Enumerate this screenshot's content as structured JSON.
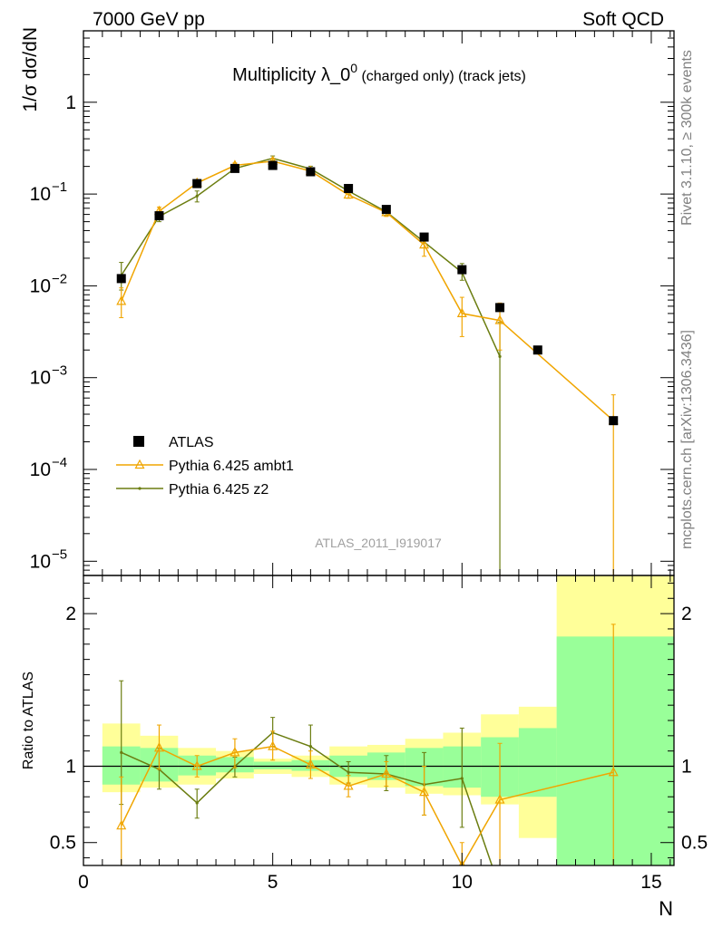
{
  "header": {
    "left": "7000 GeV pp",
    "right": "Soft QCD"
  },
  "side_labels": {
    "rivet": "Rivet 3.1.10, ≥ 300k events",
    "mcplots": "mcplots.cern.ch [arXiv:1306.3436]"
  },
  "watermark": "ATLAS_2011_I919017",
  "chart_data": {
    "type": "line",
    "title": "Multiplicity λ_0⁰ (charged only) (track jets)",
    "title_main": "Multiplicity λ_0",
    "title_sup": "0",
    "title_sub": " (charged only) (track jets)",
    "xlabel": "N",
    "ylabel": "1/σ dσ/dN",
    "ratio_ylabel": "Ratio to ATLAS",
    "xlim": [
      0,
      15.6
    ],
    "ylim_log": [
      7e-06,
      6
    ],
    "ratio_ylim": [
      0.35,
      2.25
    ],
    "x_ticks": [
      0,
      5,
      10,
      15
    ],
    "x_tick_labels": [
      "0",
      "5",
      "10",
      "15"
    ],
    "y_ticks": [
      1,
      0.1,
      0.01,
      0.001,
      0.0001,
      1e-05
    ],
    "y_tick_labels": [
      {
        "base": "1",
        "exp": ""
      },
      {
        "base": "10",
        "exp": "−1"
      },
      {
        "base": "10",
        "exp": "−2"
      },
      {
        "base": "10",
        "exp": "−3"
      },
      {
        "base": "10",
        "exp": "−4"
      },
      {
        "base": "10",
        "exp": "−5"
      }
    ],
    "ratio_ticks": [
      0.5,
      1,
      2
    ],
    "ratio_tick_labels": [
      "0.5",
      "1",
      "2"
    ],
    "legend": [
      {
        "label": "ATLAS",
        "color": "#000000",
        "marker": "square"
      },
      {
        "label": "Pythia 6.425 ambt1",
        "color": "#f0a500",
        "marker": "triangle"
      },
      {
        "label": "Pythia 6.425 z2",
        "color": "#6b7d10",
        "marker": "dot"
      }
    ],
    "atlas": {
      "x": [
        1,
        2,
        3,
        4,
        5,
        6,
        7,
        8,
        9,
        10,
        11,
        12,
        14
      ],
      "y": [
        0.012,
        0.058,
        0.13,
        0.19,
        0.205,
        0.175,
        0.115,
        0.068,
        0.034,
        0.015,
        0.0058,
        0.002,
        0.00034
      ],
      "band_edges": [
        0.5,
        1.5,
        2.5,
        3.5,
        4.5,
        5.5,
        6.5,
        7.5,
        8.5,
        9.5,
        10.5,
        11.5,
        12.5,
        15.6
      ],
      "stat_band": [
        [
          0.88,
          1.13
        ],
        [
          0.9,
          1.12
        ],
        [
          0.94,
          1.07
        ],
        [
          0.96,
          1.06
        ],
        [
          0.98,
          1.03
        ],
        [
          0.97,
          1.04
        ],
        [
          0.93,
          1.07
        ],
        [
          0.91,
          1.09
        ],
        [
          0.87,
          1.12
        ],
        [
          0.86,
          1.13
        ],
        [
          0.8,
          1.19
        ],
        [
          0.8,
          1.25
        ],
        [
          0.3,
          1.85
        ]
      ],
      "total_band": [
        [
          0.83,
          1.28
        ],
        [
          0.86,
          1.2
        ],
        [
          0.88,
          1.12
        ],
        [
          0.92,
          1.1
        ],
        [
          0.95,
          1.05
        ],
        [
          0.93,
          1.07
        ],
        [
          0.88,
          1.13
        ],
        [
          0.86,
          1.14
        ],
        [
          0.82,
          1.18
        ],
        [
          0.81,
          1.22
        ],
        [
          0.75,
          1.34
        ],
        [
          0.53,
          1.39
        ],
        [
          0.3,
          2.4
        ]
      ]
    },
    "ambt1": {
      "x": [
        1,
        2,
        3,
        4,
        5,
        6,
        7,
        8,
        9,
        10,
        11,
        14
      ],
      "y": [
        0.0068,
        0.065,
        0.132,
        0.205,
        0.228,
        0.178,
        0.098,
        0.063,
        0.028,
        0.005,
        0.0042,
        0.00034
      ],
      "err": [
        [
          0.0045,
          0.0095
        ],
        [
          0.058,
          0.072
        ],
        [
          0.122,
          0.142
        ],
        [
          0.192,
          0.218
        ],
        [
          0.212,
          0.244
        ],
        [
          0.165,
          0.191
        ],
        [
          0.09,
          0.106
        ],
        [
          0.057,
          0.069
        ],
        [
          0.021,
          0.035
        ],
        [
          0.0028,
          0.0075
        ],
        [
          0.002,
          0.0065
        ],
        [
          1e-06,
          0.00065
        ]
      ],
      "ratio": [
        0.61,
        1.12,
        1.0,
        1.09,
        1.13,
        1.01,
        0.87,
        0.95,
        0.83,
        0.35,
        0.78,
        0.96
      ],
      "ratio_err": [
        [
          0.3,
          0.93
        ],
        [
          0.98,
          1.27
        ],
        [
          0.93,
          1.07
        ],
        [
          0.99,
          1.18
        ],
        [
          1.04,
          1.23
        ],
        [
          0.92,
          1.1
        ],
        [
          0.8,
          0.94
        ],
        [
          0.87,
          1.03
        ],
        [
          0.68,
          1.0
        ],
        [
          0.2,
          0.5
        ],
        [
          0.3,
          1.15
        ],
        [
          0.3,
          1.93
        ]
      ]
    },
    "z2": {
      "x": [
        1,
        2,
        3,
        4,
        5,
        6,
        7,
        8,
        9,
        10,
        11
      ],
      "y": [
        0.013,
        0.057,
        0.095,
        0.19,
        0.245,
        0.188,
        0.108,
        0.064,
        0.03,
        0.014,
        0.0017
      ],
      "err": [
        [
          0.009,
          0.018
        ],
        [
          0.05,
          0.064
        ],
        [
          0.082,
          0.108
        ],
        [
          0.178,
          0.202
        ],
        [
          0.23,
          0.26
        ],
        [
          0.175,
          0.201
        ],
        [
          0.1,
          0.116
        ],
        [
          0.059,
          0.069
        ],
        [
          0.026,
          0.034
        ],
        [
          0.0115,
          0.0175
        ],
        [
          1e-06,
          0.004
        ]
      ],
      "ratio": [
        1.09,
        0.98,
        0.76,
        1.0,
        1.22,
        1.13,
        0.96,
        0.95,
        0.88,
        0.92,
        0.2
      ],
      "ratio_err": [
        [
          0.75,
          1.56
        ],
        [
          0.85,
          1.12
        ],
        [
          0.66,
          0.85
        ],
        [
          0.93,
          1.06
        ],
        [
          1.13,
          1.32
        ],
        [
          1.0,
          1.27
        ],
        [
          0.89,
          1.03
        ],
        [
          0.84,
          1.07
        ],
        [
          0.68,
          1.09
        ],
        [
          0.6,
          1.25
        ],
        [
          0.1,
          0.3
        ]
      ]
    }
  }
}
